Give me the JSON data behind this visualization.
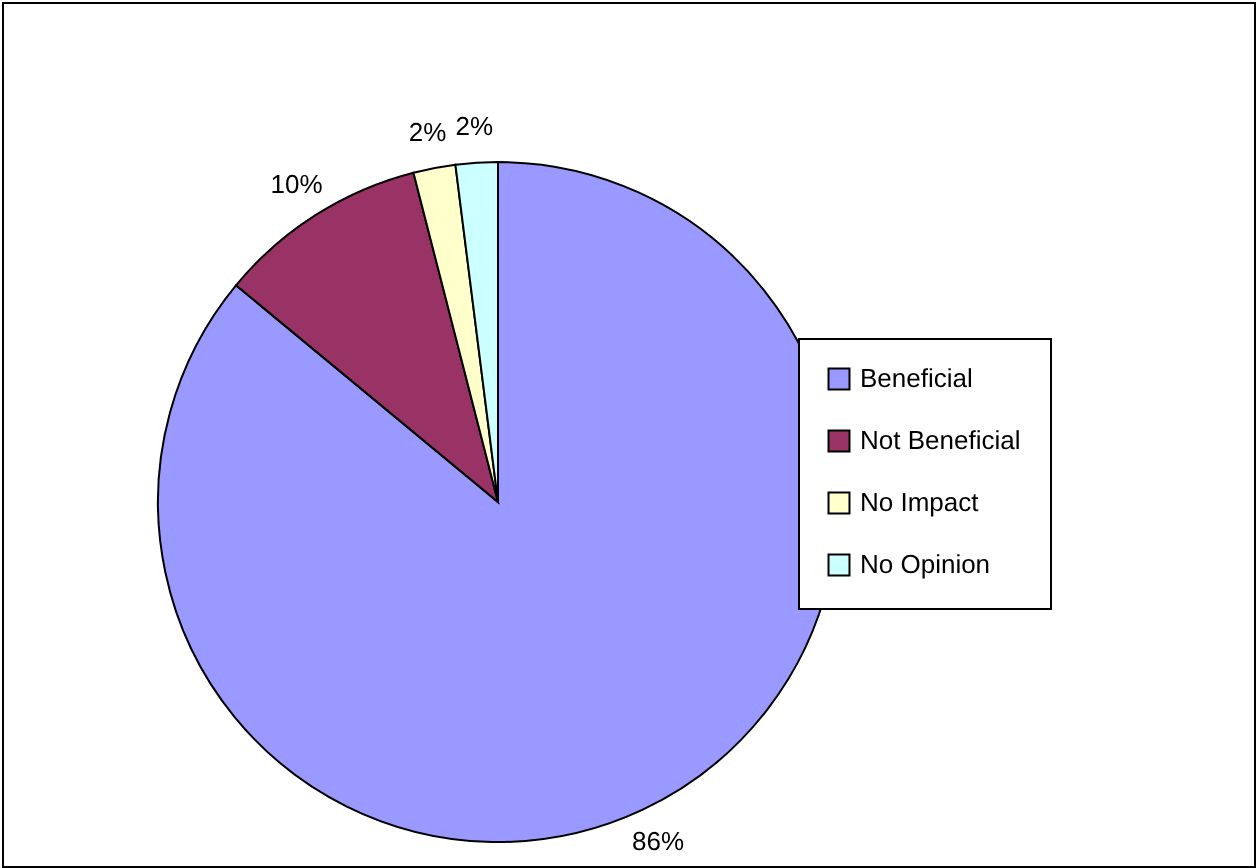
{
  "chart_data": {
    "type": "pie",
    "categories": [
      "Beneficial",
      "Not Beneficial",
      "No Impact",
      "No Opinion"
    ],
    "values": [
      86,
      10,
      2,
      2
    ],
    "colors": [
      "#9999ff",
      "#993366",
      "#ffffcc",
      "#ccffff"
    ],
    "value_labels": [
      "86%",
      "10%",
      "2%",
      "2%"
    ],
    "legend": "right"
  }
}
